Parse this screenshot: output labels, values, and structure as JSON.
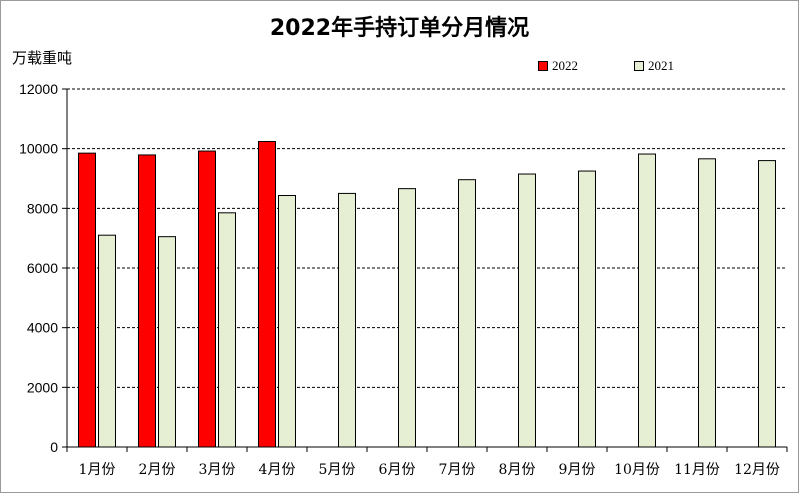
{
  "chart_data": {
    "type": "bar",
    "title": "2022年手持订单分月情况",
    "ylabel": "万载重吨",
    "xlabel": "",
    "ylim": [
      0,
      12000
    ],
    "yticks": [
      0,
      2000,
      4000,
      6000,
      8000,
      10000,
      12000
    ],
    "grid": true,
    "legend_position": "top",
    "categories": [
      "1月份",
      "2月份",
      "3月份",
      "4月份",
      "5月份",
      "6月份",
      "7月份",
      "8月份",
      "9月份",
      "10月份",
      "11月份",
      "12月份"
    ],
    "series": [
      {
        "name": "2022",
        "color": "#ff0000",
        "values": [
          9850,
          9790,
          9920,
          10240,
          null,
          null,
          null,
          null,
          null,
          null,
          null,
          null
        ]
      },
      {
        "name": "2021",
        "color": "#e6efd4",
        "values": [
          7100,
          7050,
          7850,
          8430,
          8500,
          8660,
          8960,
          9150,
          9250,
          9820,
          9660,
          9600
        ]
      }
    ]
  }
}
